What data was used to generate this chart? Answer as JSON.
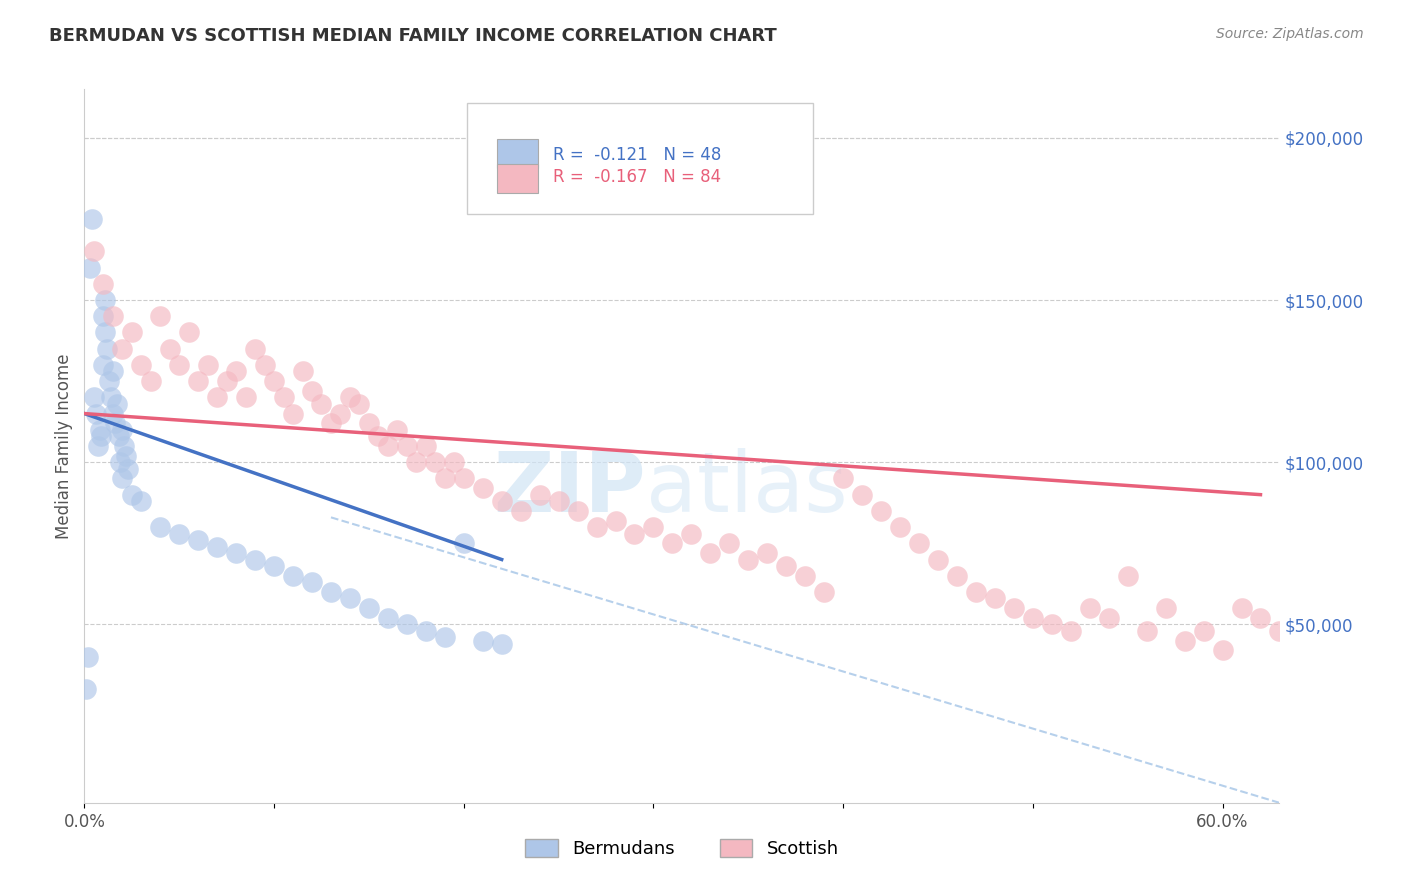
{
  "title": "BERMUDAN VS SCOTTISH MEDIAN FAMILY INCOME CORRELATION CHART",
  "source": "Source: ZipAtlas.com",
  "ylabel": "Median Family Income",
  "right_ytick_labels": [
    "$50,000",
    "$100,000",
    "$150,000",
    "$200,000"
  ],
  "right_ytick_values": [
    50000,
    100000,
    150000,
    200000
  ],
  "bermuda_color": "#aec6e8",
  "scottish_color": "#f4b8c1",
  "bermuda_line_color": "#4472c4",
  "scottish_line_color": "#e8607a",
  "dashed_line_color": "#aac8e8",
  "background_color": "#ffffff",
  "legend_berm": "R =  -0.121   N = 48",
  "legend_scot": "R =  -0.167   N = 84",
  "legend_berm_color": "#4472c4",
  "legend_scot_color": "#e8607a",
  "watermark_color": "#d0e4f5",
  "grid_color": "#cccccc",
  "xlim": [
    0,
    63
  ],
  "ylim": [
    -5000,
    215000
  ],
  "bermuda_x": [
    0.1,
    0.2,
    0.3,
    0.4,
    0.5,
    0.6,
    0.7,
    0.8,
    0.9,
    1.0,
    1.0,
    1.1,
    1.1,
    1.2,
    1.3,
    1.4,
    1.5,
    1.5,
    1.6,
    1.7,
    1.8,
    1.9,
    2.0,
    2.0,
    2.1,
    2.2,
    2.3,
    2.5,
    3.0,
    4.0,
    5.0,
    6.0,
    7.0,
    8.0,
    9.0,
    10.0,
    11.0,
    12.0,
    13.0,
    14.0,
    15.0,
    16.0,
    17.0,
    18.0,
    19.0,
    20.0,
    21.0,
    22.0
  ],
  "bermuda_y": [
    30000,
    40000,
    160000,
    175000,
    120000,
    115000,
    105000,
    110000,
    108000,
    130000,
    145000,
    140000,
    150000,
    135000,
    125000,
    120000,
    115000,
    128000,
    112000,
    118000,
    108000,
    100000,
    95000,
    110000,
    105000,
    102000,
    98000,
    90000,
    88000,
    80000,
    78000,
    76000,
    74000,
    72000,
    70000,
    68000,
    65000,
    63000,
    60000,
    58000,
    55000,
    52000,
    50000,
    48000,
    46000,
    75000,
    45000,
    44000
  ],
  "scottish_x": [
    0.5,
    1.0,
    1.5,
    2.0,
    2.5,
    3.0,
    3.5,
    4.0,
    4.5,
    5.0,
    5.5,
    6.0,
    6.5,
    7.0,
    7.5,
    8.0,
    8.5,
    9.0,
    9.5,
    10.0,
    10.5,
    11.0,
    11.5,
    12.0,
    12.5,
    13.0,
    13.5,
    14.0,
    14.5,
    15.0,
    15.5,
    16.0,
    16.5,
    17.0,
    17.5,
    18.0,
    18.5,
    19.0,
    19.5,
    20.0,
    21.0,
    22.0,
    23.0,
    24.0,
    25.0,
    26.0,
    27.0,
    28.0,
    29.0,
    30.0,
    31.0,
    32.0,
    33.0,
    34.0,
    35.0,
    36.0,
    37.0,
    38.0,
    39.0,
    40.0,
    41.0,
    42.0,
    43.0,
    44.0,
    45.0,
    46.0,
    47.0,
    48.0,
    49.0,
    50.0,
    51.0,
    52.0,
    53.0,
    54.0,
    55.0,
    56.0,
    57.0,
    58.0,
    59.0,
    60.0,
    61.0,
    62.0,
    63.0,
    64.0
  ],
  "scottish_y": [
    165000,
    155000,
    145000,
    135000,
    140000,
    130000,
    125000,
    145000,
    135000,
    130000,
    140000,
    125000,
    130000,
    120000,
    125000,
    128000,
    120000,
    135000,
    130000,
    125000,
    120000,
    115000,
    128000,
    122000,
    118000,
    112000,
    115000,
    120000,
    118000,
    112000,
    108000,
    105000,
    110000,
    105000,
    100000,
    105000,
    100000,
    95000,
    100000,
    95000,
    92000,
    88000,
    85000,
    90000,
    88000,
    85000,
    80000,
    82000,
    78000,
    80000,
    75000,
    78000,
    72000,
    75000,
    70000,
    72000,
    68000,
    65000,
    60000,
    95000,
    90000,
    85000,
    80000,
    75000,
    70000,
    65000,
    60000,
    58000,
    55000,
    52000,
    50000,
    48000,
    55000,
    52000,
    65000,
    48000,
    55000,
    45000,
    48000,
    42000,
    55000,
    52000,
    48000,
    45000
  ],
  "berm_line_x0": 0,
  "berm_line_x1": 22,
  "berm_line_y0": 115000,
  "berm_line_y1": 70000,
  "scot_line_x0": 0,
  "scot_line_x1": 62,
  "scot_line_y0": 115000,
  "scot_line_y1": 90000,
  "dash_line_x0": 13,
  "dash_line_x1": 63,
  "dash_line_y0": 83000,
  "dash_line_y1": -5000
}
